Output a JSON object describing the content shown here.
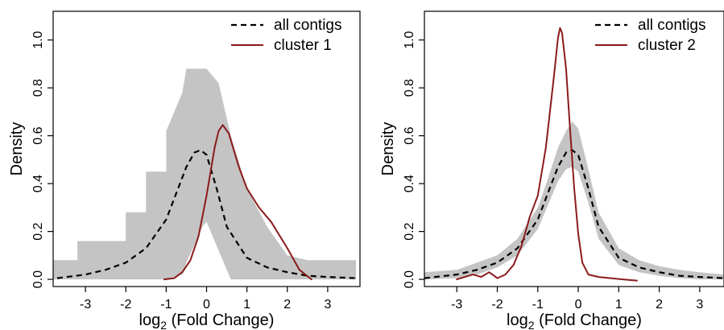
{
  "chart_data": [
    {
      "type": "area",
      "xlabel": "log",
      "xlabel_sub": "2",
      "xlabel_rest": " (Fold Change)",
      "ylabel": "Density",
      "xlim": [
        -3.8,
        3.8
      ],
      "ylim": [
        -0.03,
        1.12
      ],
      "xticks": [
        "-3",
        "-2",
        "-1",
        "0",
        "1",
        "2",
        "3"
      ],
      "yticks": [
        "0.0",
        "0.2",
        "0.4",
        "0.6",
        "0.8",
        "1.0"
      ],
      "legend_position": "top-right",
      "colors": {
        "all": "#000000",
        "cluster": "#8b1a1a",
        "band": "#c4c4c4"
      },
      "series": [
        {
          "name": "all contigs",
          "style": "dashed",
          "x": [
            -3.7,
            -3.0,
            -2.5,
            -2.0,
            -1.5,
            -1.0,
            -0.75,
            -0.5,
            -0.3,
            -0.15,
            0.0,
            0.25,
            0.5,
            1.0,
            1.5,
            2.0,
            2.5,
            3.0,
            3.7
          ],
          "y": [
            0.005,
            0.02,
            0.04,
            0.07,
            0.13,
            0.25,
            0.36,
            0.47,
            0.53,
            0.54,
            0.52,
            0.38,
            0.22,
            0.09,
            0.05,
            0.03,
            0.015,
            0.01,
            0.005
          ]
        },
        {
          "name": "cluster 1",
          "style": "solid",
          "x": [
            -1.05,
            -0.8,
            -0.6,
            -0.4,
            -0.2,
            0.0,
            0.2,
            0.3,
            0.4,
            0.55,
            0.8,
            1.0,
            1.3,
            1.6,
            2.0,
            2.3,
            2.6
          ],
          "y": [
            0.0,
            0.005,
            0.03,
            0.08,
            0.18,
            0.35,
            0.55,
            0.62,
            0.645,
            0.61,
            0.47,
            0.38,
            0.3,
            0.24,
            0.13,
            0.04,
            0.0
          ]
        }
      ],
      "band": {
        "x": [
          -3.8,
          -3.2,
          -3.2,
          -2.0,
          -2.0,
          -1.5,
          -1.5,
          -1.0,
          -1.0,
          -0.6,
          -0.5,
          -0.1,
          0.0,
          0.3,
          0.6,
          1.0,
          1.5,
          2.0,
          2.5,
          3.0,
          3.7
        ],
        "lower": [
          0.0,
          0.0,
          0.0,
          0.0,
          0.0,
          0.0,
          0.0,
          0.0,
          0.0,
          0.02,
          0.07,
          0.22,
          0.24,
          0.12,
          0.0,
          0.0,
          0.0,
          0.0,
          0.0,
          0.0,
          0.0
        ],
        "upper": [
          0.08,
          0.08,
          0.16,
          0.16,
          0.28,
          0.28,
          0.45,
          0.45,
          0.62,
          0.78,
          0.88,
          0.88,
          0.88,
          0.82,
          0.6,
          0.38,
          0.22,
          0.1,
          0.08,
          0.08,
          0.08
        ]
      }
    },
    {
      "type": "area",
      "xlabel": "log",
      "xlabel_sub": "2",
      "xlabel_rest": " (Fold Change)",
      "ylabel": "Density",
      "xlim": [
        -3.8,
        3.6
      ],
      "ylim": [
        -0.03,
        1.12
      ],
      "xticks": [
        "-3",
        "-2",
        "-1",
        "0",
        "1",
        "2",
        "3"
      ],
      "yticks": [
        "0.0",
        "0.2",
        "0.4",
        "0.6",
        "0.8",
        "1.0"
      ],
      "legend_position": "top-right",
      "colors": {
        "all": "#000000",
        "cluster": "#8b1a1a",
        "band": "#c4c4c4"
      },
      "series": [
        {
          "name": "all contigs",
          "style": "dashed",
          "x": [
            -3.8,
            -3.0,
            -2.5,
            -2.0,
            -1.5,
            -1.0,
            -0.75,
            -0.5,
            -0.3,
            -0.15,
            0.0,
            0.25,
            0.5,
            1.0,
            1.5,
            2.0,
            2.5,
            3.0,
            3.6
          ],
          "y": [
            0.005,
            0.02,
            0.04,
            0.07,
            0.13,
            0.25,
            0.36,
            0.47,
            0.53,
            0.54,
            0.52,
            0.38,
            0.22,
            0.09,
            0.05,
            0.03,
            0.015,
            0.01,
            0.005
          ]
        },
        {
          "name": "cluster 2",
          "style": "solid",
          "x": [
            -3.0,
            -2.6,
            -2.4,
            -2.2,
            -2.0,
            -1.8,
            -1.6,
            -1.4,
            -1.2,
            -1.0,
            -0.8,
            -0.6,
            -0.5,
            -0.45,
            -0.4,
            -0.3,
            -0.2,
            -0.1,
            0.0,
            0.1,
            0.25,
            0.5,
            0.8,
            1.1,
            1.45
          ],
          "y": [
            0.0,
            0.02,
            0.01,
            0.03,
            0.005,
            0.02,
            0.06,
            0.14,
            0.26,
            0.35,
            0.55,
            0.85,
            1.01,
            1.05,
            1.03,
            0.88,
            0.62,
            0.38,
            0.19,
            0.07,
            0.02,
            0.01,
            0.005,
            0.0,
            -0.005
          ]
        }
      ],
      "band": {
        "x": [
          -3.8,
          -3.0,
          -2.5,
          -2.0,
          -1.5,
          -1.0,
          -0.75,
          -0.5,
          -0.3,
          -0.15,
          0.0,
          0.25,
          0.5,
          1.0,
          1.5,
          2.0,
          2.5,
          3.0,
          3.6
        ],
        "lower": [
          0.0,
          0.005,
          0.02,
          0.05,
          0.1,
          0.21,
          0.31,
          0.41,
          0.46,
          0.47,
          0.45,
          0.32,
          0.17,
          0.06,
          0.03,
          0.015,
          0.005,
          0.0,
          0.0
        ],
        "upper": [
          0.03,
          0.04,
          0.07,
          0.1,
          0.17,
          0.3,
          0.42,
          0.55,
          0.62,
          0.66,
          0.63,
          0.46,
          0.28,
          0.13,
          0.08,
          0.055,
          0.04,
          0.03,
          0.02
        ]
      }
    }
  ]
}
